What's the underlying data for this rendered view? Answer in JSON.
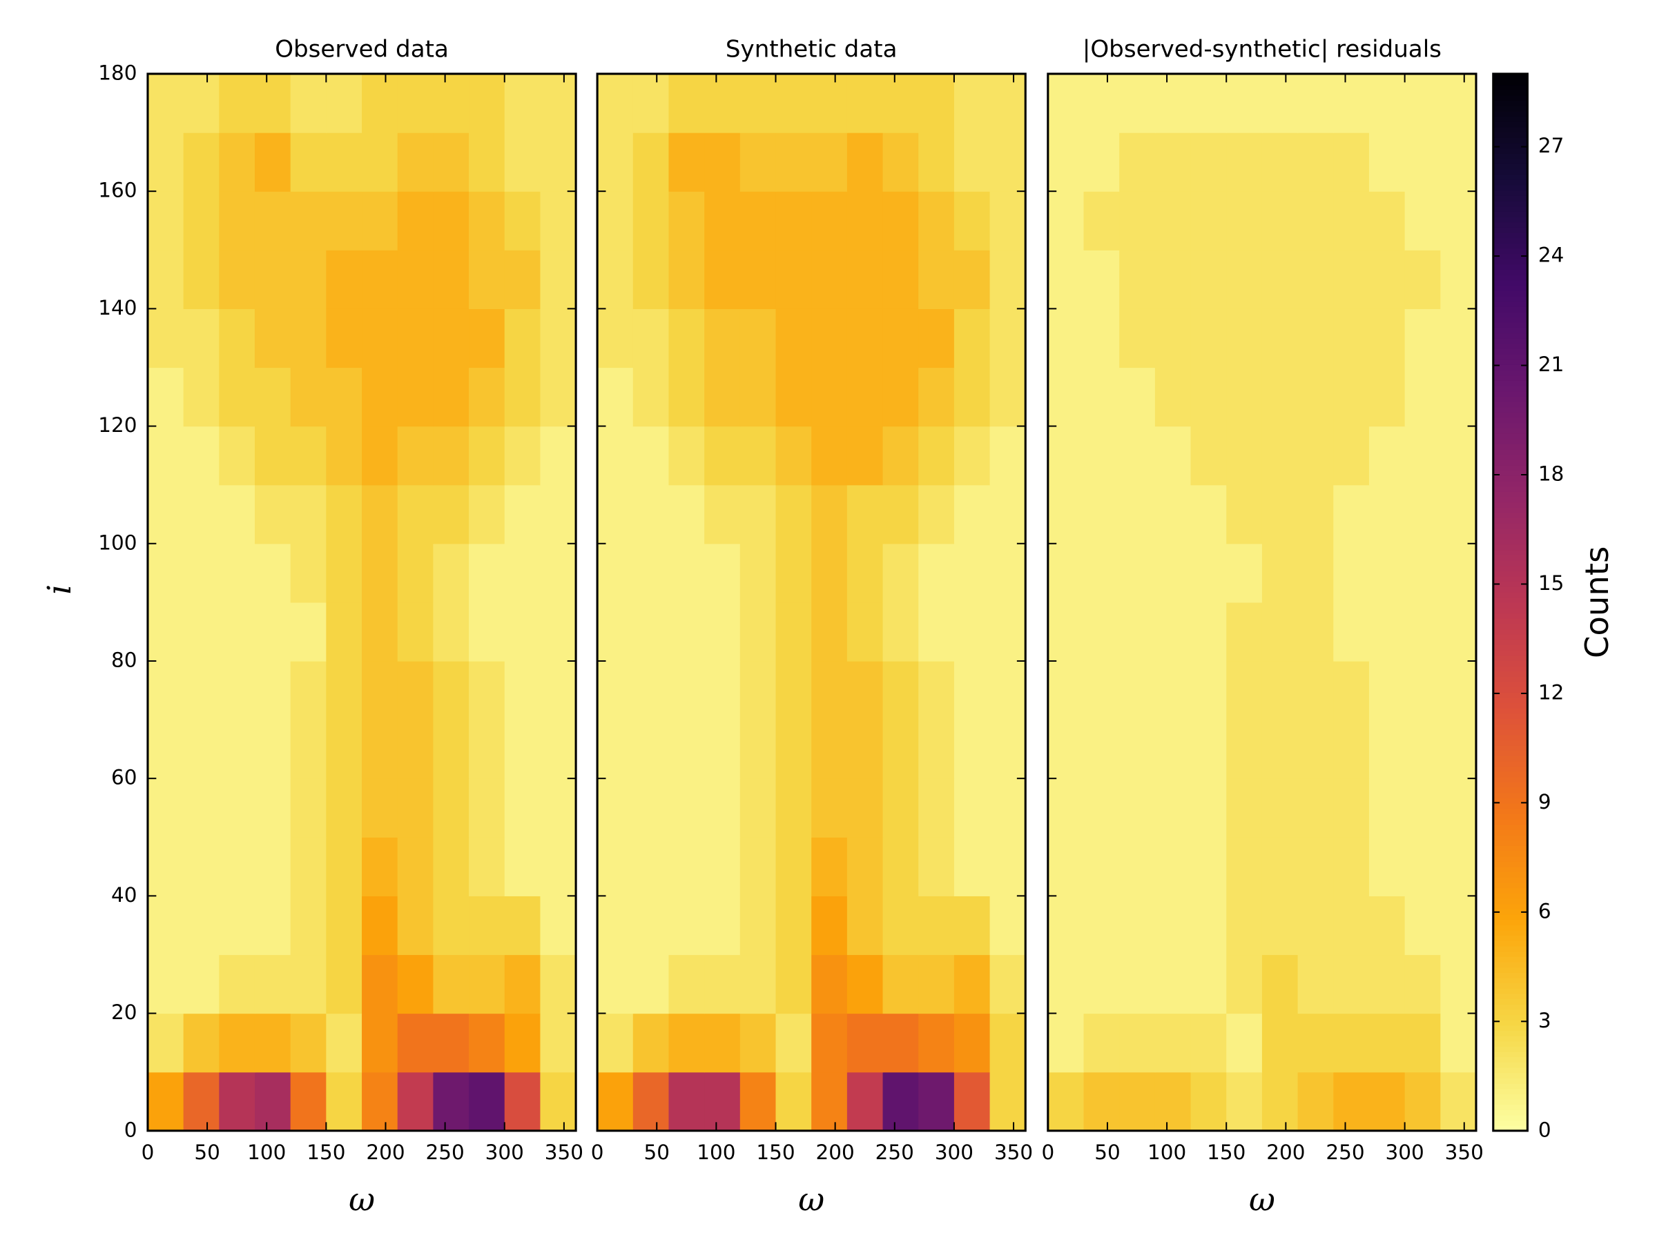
{
  "chart_data": [
    {
      "type": "heatmap",
      "title": "Observed data",
      "xlabel": "ω",
      "ylabel": "i",
      "xbins": [
        0,
        30,
        60,
        90,
        120,
        150,
        180,
        210,
        240,
        270,
        300,
        330,
        360
      ],
      "ybins": [
        0,
        10,
        20,
        30,
        40,
        50,
        60,
        70,
        80,
        90,
        100,
        110,
        120,
        130,
        140,
        150,
        160,
        170,
        180
      ],
      "values": [
        [
          6,
          10,
          15,
          16,
          9,
          3,
          8,
          14,
          20,
          21,
          12,
          3
        ],
        [
          2,
          4,
          5,
          5,
          4,
          2,
          7,
          9,
          9,
          8,
          6,
          2
        ],
        [
          1,
          1,
          2,
          2,
          2,
          3,
          7,
          6,
          4,
          4,
          5,
          2
        ],
        [
          1,
          1,
          1,
          1,
          2,
          3,
          6,
          4,
          3,
          3,
          3,
          1
        ],
        [
          1,
          1,
          1,
          1,
          2,
          3,
          5,
          4,
          3,
          2,
          1,
          1
        ],
        [
          1,
          1,
          1,
          1,
          2,
          3,
          4,
          4,
          3,
          2,
          1,
          1
        ],
        [
          1,
          1,
          1,
          1,
          2,
          3,
          4,
          4,
          3,
          2,
          1,
          1
        ],
        [
          1,
          1,
          1,
          1,
          2,
          3,
          4,
          4,
          3,
          2,
          1,
          1
        ],
        [
          1,
          1,
          1,
          1,
          1,
          3,
          4,
          3,
          2,
          1,
          1,
          1
        ],
        [
          1,
          1,
          1,
          1,
          2,
          3,
          4,
          3,
          2,
          1,
          1,
          1
        ],
        [
          1,
          1,
          1,
          2,
          2,
          3,
          4,
          3,
          3,
          2,
          1,
          1
        ],
        [
          1,
          1,
          2,
          3,
          3,
          4,
          5,
          4,
          4,
          3,
          2,
          1
        ],
        [
          1,
          2,
          3,
          3,
          4,
          4,
          5,
          5,
          5,
          4,
          3,
          2
        ],
        [
          2,
          2,
          3,
          4,
          4,
          5,
          5,
          5,
          5,
          5,
          3,
          2
        ],
        [
          2,
          3,
          4,
          4,
          4,
          5,
          5,
          5,
          5,
          4,
          4,
          2
        ],
        [
          2,
          3,
          4,
          4,
          4,
          4,
          4,
          5,
          5,
          4,
          3,
          2
        ],
        [
          2,
          3,
          4,
          5,
          3,
          3,
          3,
          4,
          4,
          3,
          2,
          2
        ],
        [
          2,
          2,
          3,
          3,
          2,
          2,
          3,
          3,
          3,
          3,
          2,
          2
        ]
      ],
      "xlim": [
        0,
        360
      ],
      "ylim": [
        0,
        180
      ],
      "xticks": [
        0,
        50,
        100,
        150,
        200,
        250,
        300,
        350
      ],
      "yticks": [
        0,
        20,
        40,
        60,
        80,
        100,
        120,
        140,
        160,
        180
      ]
    },
    {
      "type": "heatmap",
      "title": "Synthetic data",
      "xlabel": "ω",
      "xbins": [
        0,
        30,
        60,
        90,
        120,
        150,
        180,
        210,
        240,
        270,
        300,
        330,
        360
      ],
      "ybins": [
        0,
        10,
        20,
        30,
        40,
        50,
        60,
        70,
        80,
        90,
        100,
        110,
        120,
        130,
        140,
        150,
        160,
        170,
        180
      ],
      "values": [
        [
          6,
          10,
          15,
          15,
          8,
          3,
          8,
          14,
          21,
          20,
          11,
          3
        ],
        [
          2,
          4,
          5,
          5,
          4,
          2,
          8,
          9,
          9,
          8,
          7,
          3
        ],
        [
          1,
          1,
          2,
          2,
          2,
          3,
          7,
          6,
          4,
          4,
          5,
          2
        ],
        [
          1,
          1,
          1,
          1,
          2,
          3,
          6,
          4,
          3,
          3,
          3,
          1
        ],
        [
          1,
          1,
          1,
          1,
          2,
          3,
          5,
          4,
          3,
          2,
          1,
          1
        ],
        [
          1,
          1,
          1,
          1,
          2,
          3,
          4,
          4,
          3,
          2,
          1,
          1
        ],
        [
          1,
          1,
          1,
          1,
          2,
          3,
          4,
          4,
          3,
          2,
          1,
          1
        ],
        [
          1,
          1,
          1,
          1,
          2,
          3,
          4,
          4,
          3,
          2,
          1,
          1
        ],
        [
          1,
          1,
          1,
          1,
          2,
          3,
          4,
          3,
          2,
          1,
          1,
          1
        ],
        [
          1,
          1,
          1,
          1,
          2,
          3,
          4,
          3,
          2,
          1,
          1,
          1
        ],
        [
          1,
          1,
          1,
          2,
          2,
          3,
          4,
          3,
          3,
          2,
          1,
          1
        ],
        [
          1,
          1,
          2,
          3,
          3,
          4,
          5,
          5,
          4,
          3,
          2,
          1
        ],
        [
          1,
          2,
          3,
          4,
          4,
          5,
          5,
          5,
          5,
          4,
          3,
          2
        ],
        [
          2,
          2,
          3,
          4,
          4,
          5,
          5,
          5,
          5,
          5,
          3,
          2
        ],
        [
          2,
          3,
          4,
          5,
          5,
          5,
          5,
          5,
          5,
          4,
          4,
          2
        ],
        [
          2,
          3,
          4,
          5,
          5,
          5,
          5,
          5,
          5,
          4,
          3,
          2
        ],
        [
          2,
          3,
          5,
          5,
          4,
          4,
          4,
          5,
          4,
          3,
          2,
          2
        ],
        [
          2,
          2,
          3,
          3,
          3,
          3,
          3,
          3,
          3,
          3,
          2,
          2
        ]
      ],
      "xlim": [
        0,
        360
      ],
      "ylim": [
        0,
        180
      ],
      "xticks": [
        0,
        50,
        100,
        150,
        200,
        250,
        300,
        350
      ],
      "yticks": [
        0,
        20,
        40,
        60,
        80,
        100,
        120,
        140,
        160,
        180
      ]
    },
    {
      "type": "heatmap",
      "title": "|Observed-synthetic| residuals",
      "xlabel": "ω",
      "xbins": [
        0,
        30,
        60,
        90,
        120,
        150,
        180,
        210,
        240,
        270,
        300,
        330,
        360
      ],
      "ybins": [
        0,
        10,
        20,
        30,
        40,
        50,
        60,
        70,
        80,
        90,
        100,
        110,
        120,
        130,
        140,
        150,
        160,
        170,
        180
      ],
      "values": [
        [
          3,
          4,
          4,
          4,
          3,
          2,
          3,
          4,
          5,
          5,
          4,
          2
        ],
        [
          1,
          2,
          2,
          2,
          2,
          1,
          3,
          3,
          3,
          3,
          3,
          1
        ],
        [
          1,
          1,
          1,
          1,
          1,
          2,
          3,
          2,
          2,
          2,
          2,
          1
        ],
        [
          1,
          1,
          1,
          1,
          1,
          2,
          2,
          2,
          2,
          2,
          1,
          1
        ],
        [
          1,
          1,
          1,
          1,
          1,
          2,
          2,
          2,
          2,
          1,
          1,
          1
        ],
        [
          1,
          1,
          1,
          1,
          1,
          2,
          2,
          2,
          2,
          1,
          1,
          1
        ],
        [
          1,
          1,
          1,
          1,
          1,
          2,
          2,
          2,
          2,
          1,
          1,
          1
        ],
        [
          1,
          1,
          1,
          1,
          1,
          2,
          2,
          2,
          2,
          1,
          1,
          1
        ],
        [
          1,
          1,
          1,
          1,
          1,
          2,
          2,
          2,
          1,
          1,
          1,
          1
        ],
        [
          1,
          1,
          1,
          1,
          1,
          1,
          2,
          2,
          1,
          1,
          1,
          1
        ],
        [
          1,
          1,
          1,
          1,
          1,
          2,
          2,
          2,
          1,
          1,
          1,
          1
        ],
        [
          1,
          1,
          1,
          1,
          2,
          2,
          2,
          2,
          2,
          1,
          1,
          1
        ],
        [
          1,
          1,
          1,
          2,
          2,
          2,
          2,
          2,
          2,
          2,
          1,
          1
        ],
        [
          1,
          1,
          2,
          2,
          2,
          2,
          2,
          2,
          2,
          2,
          1,
          1
        ],
        [
          1,
          1,
          2,
          2,
          2,
          2,
          2,
          2,
          2,
          2,
          2,
          1
        ],
        [
          1,
          2,
          2,
          2,
          2,
          2,
          2,
          2,
          2,
          2,
          1,
          1
        ],
        [
          1,
          1,
          2,
          2,
          2,
          2,
          2,
          2,
          2,
          1,
          1,
          1
        ],
        [
          1,
          1,
          1,
          1,
          1,
          1,
          1,
          1,
          1,
          1,
          1,
          1
        ]
      ],
      "xlim": [
        0,
        360
      ],
      "ylim": [
        0,
        180
      ],
      "xticks": [
        0,
        50,
        100,
        150,
        200,
        250,
        300,
        350
      ],
      "yticks": [
        0,
        20,
        40,
        60,
        80,
        100,
        120,
        140,
        160,
        180
      ],
      "colorbar": {
        "label": "Counts",
        "colormap": "inferno_r",
        "lim": [
          0,
          29
        ],
        "ticks": [
          0,
          3,
          6,
          9,
          12,
          15,
          18,
          21,
          24,
          27
        ]
      }
    }
  ]
}
